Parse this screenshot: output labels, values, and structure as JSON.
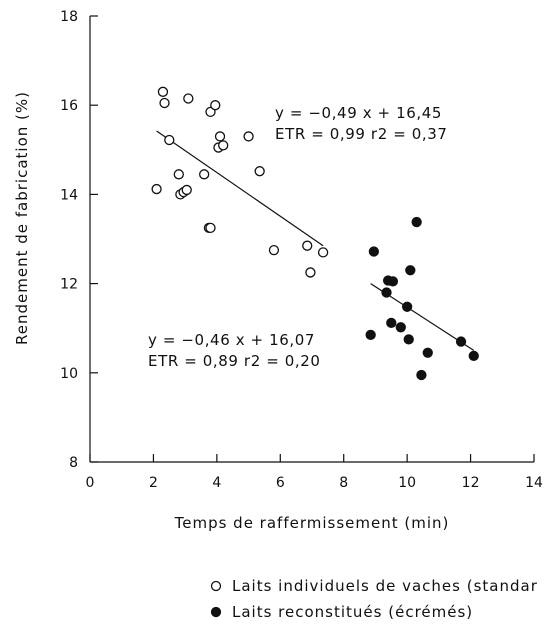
{
  "chart_data": {
    "type": "scatter",
    "xlabel": "Temps de raffermissement (min)",
    "ylabel": "Rendement de fabrication (%)",
    "xlim": [
      0,
      14
    ],
    "ylim": [
      8,
      18
    ],
    "x_ticks": [
      0,
      2,
      4,
      6,
      8,
      10,
      12,
      14
    ],
    "y_ticks": [
      8,
      10,
      12,
      14,
      16,
      18
    ],
    "grid": false,
    "legend_position": "bottom-right",
    "series": [
      {
        "name": "Laits individuels de vaches (standar",
        "marker": "open-circle",
        "color": "#111111",
        "points": [
          [
            2.1,
            14.12
          ],
          [
            2.3,
            16.3
          ],
          [
            2.35,
            16.05
          ],
          [
            2.5,
            15.22
          ],
          [
            2.8,
            14.45
          ],
          [
            2.85,
            14.0
          ],
          [
            2.95,
            14.05
          ],
          [
            3.05,
            14.1
          ],
          [
            3.1,
            16.15
          ],
          [
            3.6,
            14.45
          ],
          [
            3.75,
            13.25
          ],
          [
            3.8,
            13.25
          ],
          [
            3.8,
            15.85
          ],
          [
            3.95,
            16.0
          ],
          [
            4.05,
            15.05
          ],
          [
            4.1,
            15.3
          ],
          [
            4.2,
            15.1
          ],
          [
            5.0,
            15.3
          ],
          [
            5.35,
            14.52
          ],
          [
            5.8,
            12.75
          ],
          [
            6.85,
            12.85
          ],
          [
            6.95,
            12.25
          ],
          [
            7.35,
            12.7
          ]
        ],
        "regression": {
          "slope": -0.49,
          "intercept": 16.45,
          "x_range": [
            2.1,
            7.35
          ],
          "line1": "y = −0,49 x + 16,45",
          "line2": "ETR = 0,99   r2 = 0,37"
        }
      },
      {
        "name": "Laits reconstitués (écrémés)",
        "marker": "filled-circle",
        "color": "#111111",
        "points": [
          [
            8.85,
            10.85
          ],
          [
            8.95,
            12.72
          ],
          [
            9.35,
            11.8
          ],
          [
            9.4,
            12.07
          ],
          [
            9.5,
            11.12
          ],
          [
            9.55,
            12.05
          ],
          [
            9.8,
            11.02
          ],
          [
            10.0,
            11.48
          ],
          [
            10.05,
            10.75
          ],
          [
            10.1,
            12.3
          ],
          [
            10.3,
            13.38
          ],
          [
            10.45,
            9.95
          ],
          [
            10.65,
            10.45
          ],
          [
            11.7,
            10.7
          ],
          [
            12.1,
            10.38
          ]
        ],
        "regression": {
          "slope": -0.46,
          "intercept": 16.07,
          "x_range": [
            8.85,
            12.1
          ],
          "line1": "y = −0,46 x + 16,07",
          "line2": "ETR = 0,89   r2 = 0,20"
        }
      }
    ]
  }
}
